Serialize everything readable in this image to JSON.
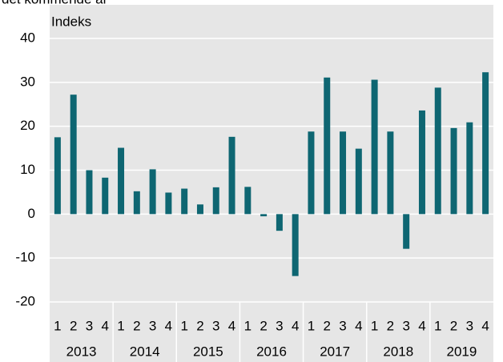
{
  "chart_data": {
    "type": "bar",
    "title": "det kommende år",
    "y_label": "Indeks",
    "categories": [
      "1",
      "2",
      "3",
      "4",
      "1",
      "2",
      "3",
      "4",
      "1",
      "2",
      "3",
      "4",
      "1",
      "2",
      "3",
      "4",
      "1",
      "2",
      "3",
      "4",
      "1",
      "2",
      "3",
      "4",
      "1",
      "2",
      "3",
      "4"
    ],
    "years": [
      "2013",
      "2014",
      "2015",
      "2016",
      "2017",
      "2018",
      "2019"
    ],
    "values": [
      17.5,
      27.2,
      10,
      8.3,
      15.1,
      5.2,
      10.2,
      4.9,
      5.8,
      2.2,
      6.1,
      17.6,
      6.2,
      -0.5,
      -3.8,
      -14.1,
      18.8,
      31.1,
      18.8,
      14.9,
      30.6,
      18.8,
      -7.9,
      23.6,
      28.8,
      19.6,
      20.9,
      32.3
    ],
    "color": "#0e6672",
    "ylim": [
      -20,
      40
    ],
    "yticks": [
      -20,
      -10,
      0,
      10,
      20,
      30,
      40
    ],
    "grid": true
  }
}
